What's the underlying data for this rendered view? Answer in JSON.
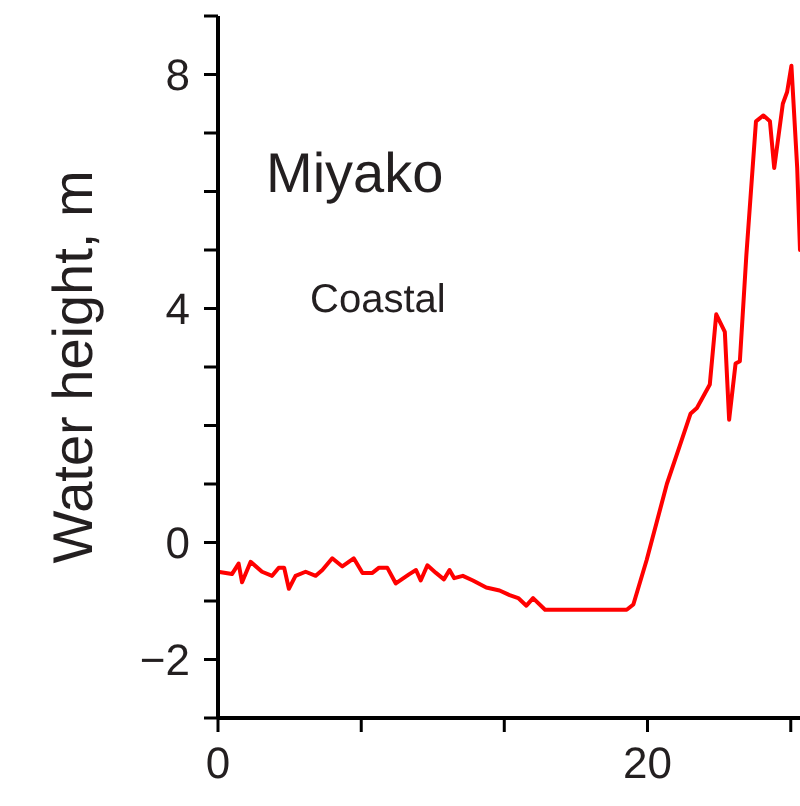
{
  "chart_data": {
    "type": "line",
    "title": "Miyako",
    "subtitle": "Coastal",
    "ylabel": "Water height, m",
    "x": [
      0,
      0.65,
      0.96,
      1.12,
      1.52,
      2.05,
      2.52,
      2.83,
      3.08,
      3.3,
      3.61,
      4.08,
      4.55,
      4.86,
      5.32,
      5.79,
      6.32,
      6.73,
      7.19,
      7.5,
      7.88,
      8.28,
      8.91,
      9.22,
      9.44,
      9.75,
      10.15,
      10.52,
      10.78,
      11.0,
      11.4,
      11.87,
      12.49,
      13.11,
      13.58,
      13.98,
      14.36,
      14.67,
      15.23,
      19.03,
      19.34,
      19.96,
      20.9,
      21.5,
      22.0,
      22.3,
      22.9,
      23.2,
      23.6,
      23.8,
      24.1,
      24.3,
      24.6,
      25.05,
      25.4,
      25.7,
      25.9,
      26.3,
      26.5,
      26.7,
      26.97,
      27.1
    ],
    "series": [
      {
        "color": "#ff0000",
        "values": [
          -0.5,
          -0.54,
          -0.36,
          -0.68,
          -0.33,
          -0.5,
          -0.57,
          -0.43,
          -0.43,
          -0.79,
          -0.57,
          -0.5,
          -0.57,
          -0.47,
          -0.27,
          -0.41,
          -0.27,
          -0.52,
          -0.52,
          -0.43,
          -0.43,
          -0.7,
          -0.54,
          -0.47,
          -0.65,
          -0.39,
          -0.52,
          -0.63,
          -0.47,
          -0.61,
          -0.57,
          -0.65,
          -0.77,
          -0.82,
          -0.9,
          -0.95,
          -1.08,
          -0.95,
          -1.15,
          -1.15,
          -1.06,
          -0.3,
          1.0,
          1.65,
          2.2,
          2.3,
          2.7,
          3.9,
          3.6,
          2.1,
          3.06,
          3.1,
          4.9,
          7.2,
          7.3,
          7.2,
          6.4,
          7.5,
          7.7,
          8.15,
          6.4,
          5.0
        ]
      }
    ],
    "xlim": [
      0,
      27.1
    ],
    "ylim": [
      -3,
      9
    ],
    "xticks": [
      0,
      {
        "value": 6.67,
        "label": null
      },
      {
        "value": 13.33,
        "label": null
      },
      20,
      {
        "value": 26.67,
        "label": null
      }
    ],
    "yticks": [
      {
        "value": -3,
        "label": null
      },
      -2,
      {
        "value": -1,
        "label": null
      },
      0,
      {
        "value": 1,
        "label": null
      },
      {
        "value": 2,
        "label": null
      },
      {
        "value": 3,
        "label": null
      },
      4,
      {
        "value": 5,
        "label": null
      },
      {
        "value": 6,
        "label": null
      },
      {
        "value": 7,
        "label": null
      },
      8,
      {
        "value": 9,
        "label": null
      }
    ]
  }
}
